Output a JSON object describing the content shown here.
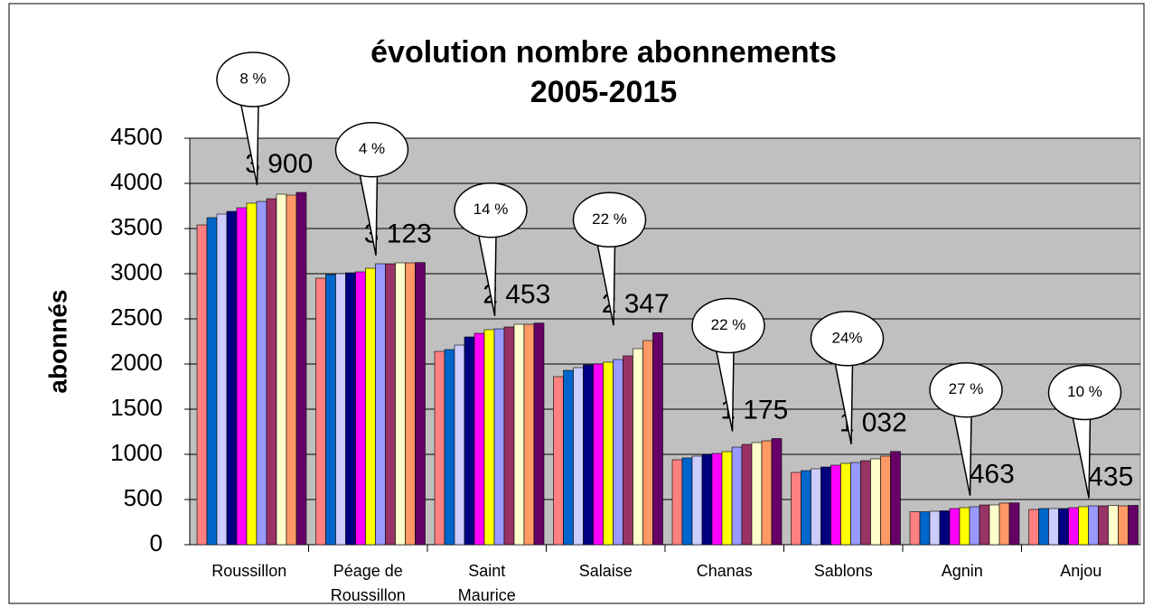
{
  "chart_data": {
    "type": "bar",
    "title": "évolution nombre abonnements",
    "subtitle": "2005-2015",
    "y_label": "abonnés",
    "categories": [
      "Roussillon",
      "Péage de Roussillon",
      "Saint Maurice",
      "Salaise",
      "Chanas",
      "Sablons",
      "Agnin",
      "Anjou"
    ],
    "annotations": [
      "8 %",
      "4 %",
      "14 %",
      "22 %",
      "22 %",
      "24%",
      "27 %",
      "10 %"
    ],
    "series": [
      {
        "color": "#ff8080",
        "values": [
          3540,
          2950,
          2140,
          1860,
          940,
          800,
          365,
          390
        ]
      },
      {
        "color": "#0066cc",
        "values": [
          3620,
          2990,
          2160,
          1930,
          960,
          820,
          365,
          400
        ]
      },
      {
        "color": "#ccccff",
        "values": [
          3660,
          3000,
          2210,
          1960,
          980,
          840,
          370,
          400
        ]
      },
      {
        "color": "#000080",
        "values": [
          3690,
          3010,
          2300,
          1990,
          1000,
          860,
          375,
          400
        ]
      },
      {
        "color": "#ff00ff",
        "values": [
          3730,
          3020,
          2340,
          2000,
          1010,
          880,
          400,
          410
        ]
      },
      {
        "color": "#ffff00",
        "values": [
          3780,
          3060,
          2380,
          2020,
          1030,
          900,
          410,
          420
        ]
      },
      {
        "color": "#9999ff",
        "values": [
          3800,
          3110,
          2390,
          2050,
          1080,
          910,
          420,
          430
        ]
      },
      {
        "color": "#993366",
        "values": [
          3830,
          3110,
          2410,
          2090,
          1110,
          930,
          440,
          430
        ]
      },
      {
        "color": "#ffffcc",
        "values": [
          3880,
          3120,
          2440,
          2170,
          1130,
          950,
          440,
          435
        ]
      },
      {
        "color": "#ff9966",
        "values": [
          3870,
          3120,
          2440,
          2260,
          1150,
          980,
          460,
          430
        ]
      },
      {
        "color": "#660066",
        "values": [
          3900,
          3123,
          2453,
          2347,
          1175,
          1032,
          463,
          435
        ],
        "value_labels": [
          "3 900",
          "3 123",
          "2 453",
          "2 347",
          "1 175",
          "1 032",
          "463",
          "435"
        ]
      }
    ],
    "ylim": [
      0,
      4500
    ],
    "yticks": [
      0,
      500,
      1000,
      1500,
      2000,
      2500,
      3000,
      3500,
      4000,
      4500
    ],
    "plot_background": "#c0c0c0",
    "grid": true
  }
}
